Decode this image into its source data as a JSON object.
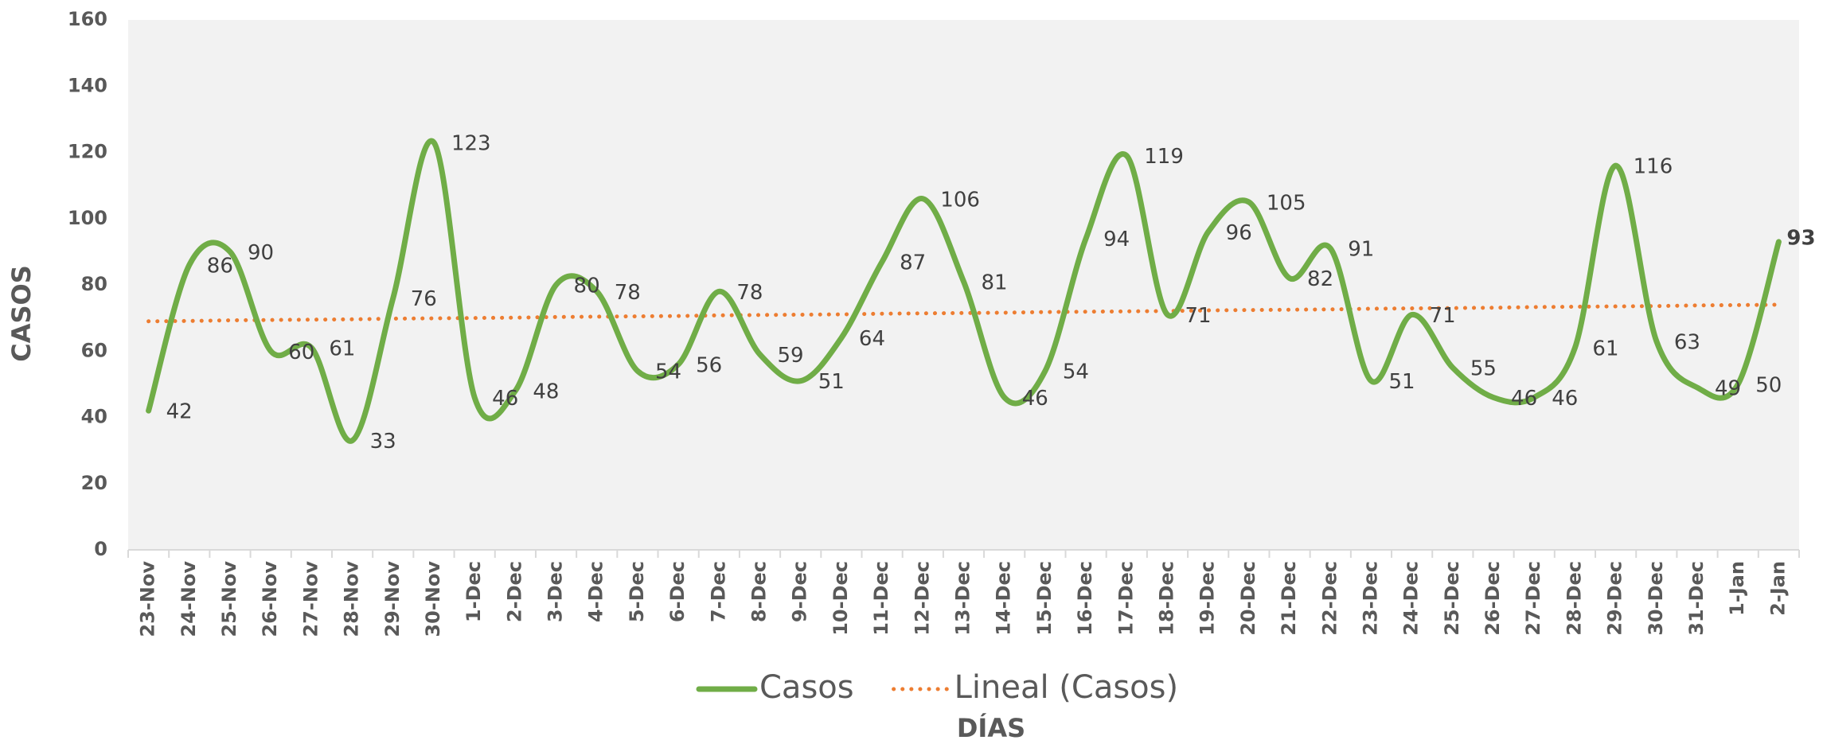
{
  "chart_data": {
    "type": "line",
    "y_label": "CASOS",
    "x_label": "DÍAS",
    "categories": [
      "23-Nov",
      "24-Nov",
      "25-Nov",
      "26-Nov",
      "27-Nov",
      "28-Nov",
      "29-Nov",
      "30-Nov",
      "1-Dec",
      "2-Dec",
      "3-Dec",
      "4-Dec",
      "5-Dec",
      "6-Dec",
      "7-Dec",
      "8-Dec",
      "9-Dec",
      "10-Dec",
      "11-Dec",
      "12-Dec",
      "13-Dec",
      "14-Dec",
      "15-Dec",
      "16-Dec",
      "17-Dec",
      "18-Dec",
      "19-Dec",
      "20-Dec",
      "21-Dec",
      "22-Dec",
      "23-Dec",
      "24-Dec",
      "25-Dec",
      "26-Dec",
      "27-Dec",
      "28-Dec",
      "29-Dec",
      "30-Dec",
      "31-Dec",
      "1-Jan",
      "2-Jan"
    ],
    "series": [
      {
        "name": "Casos",
        "color": "#70ad47",
        "style": "solid",
        "values": [
          42,
          86,
          90,
          60,
          61,
          33,
          76,
          123,
          46,
          48,
          80,
          78,
          54,
          56,
          78,
          59,
          51,
          64,
          87,
          106,
          81,
          46,
          54,
          94,
          119,
          71,
          96,
          105,
          82,
          91,
          51,
          71,
          55,
          46,
          46,
          61,
          116,
          63,
          49,
          50,
          93
        ]
      },
      {
        "name": "Lineal (Casos)",
        "color": "#ed7d31",
        "style": "dotted",
        "values": [
          69.0,
          69.1,
          69.3,
          69.4,
          69.5,
          69.6,
          69.8,
          69.9,
          70.0,
          70.1,
          70.3,
          70.4,
          70.5,
          70.6,
          70.8,
          70.9,
          71.0,
          71.1,
          71.3,
          71.4,
          71.5,
          71.6,
          71.8,
          71.9,
          72.0,
          72.1,
          72.3,
          72.4,
          72.5,
          72.6,
          72.8,
          72.9,
          73.0,
          73.1,
          73.3,
          73.4,
          73.5,
          73.6,
          73.8,
          73.9,
          74.0
        ]
      }
    ],
    "data_labels_series": 0,
    "ylim": [
      0,
      160
    ],
    "yticks": [
      0,
      20,
      40,
      60,
      80,
      100,
      120,
      140,
      160
    ],
    "grid": false
  }
}
